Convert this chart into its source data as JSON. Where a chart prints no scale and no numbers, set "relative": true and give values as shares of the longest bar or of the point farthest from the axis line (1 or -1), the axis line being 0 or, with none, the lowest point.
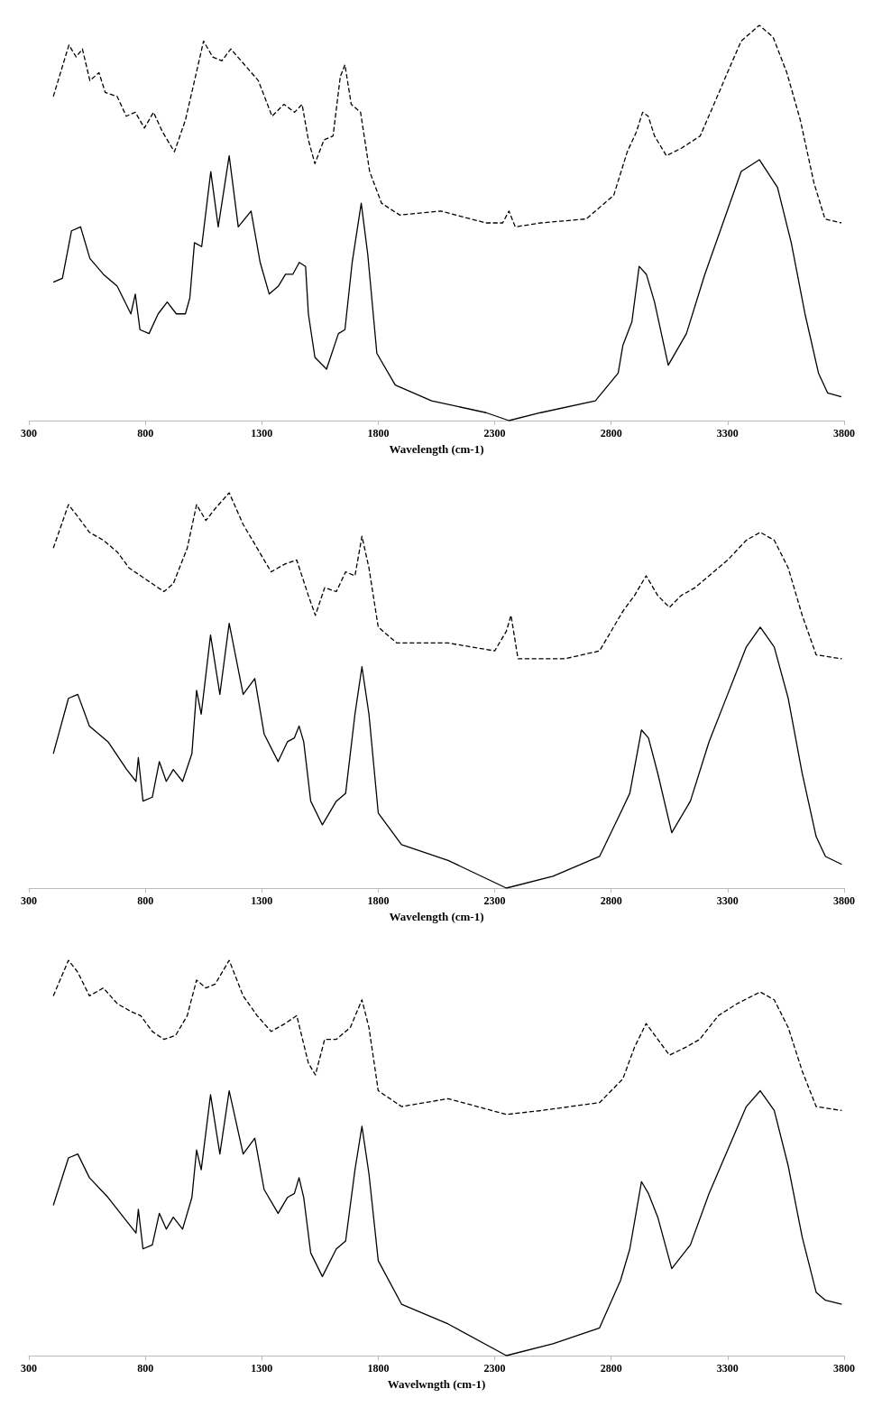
{
  "chart_data": [
    {
      "type": "line",
      "relative": true,
      "xlabel": "Wavelength (cm-1)",
      "xlim": [
        300,
        3800
      ],
      "xticks": [
        300,
        800,
        1300,
        1800,
        2300,
        2800,
        3300,
        3800
      ],
      "tick_labels": "x",
      "series": [
        {
          "color": "#000000",
          "line_style": "dashed",
          "x": [
            405,
            472,
            503,
            530,
            562,
            601,
            628,
            679,
            718,
            757,
            796,
            835,
            874,
            925,
            972,
            1019,
            1050,
            1089,
            1128,
            1167,
            1226,
            1285,
            1344,
            1395,
            1441,
            1473,
            1500,
            1528,
            1567,
            1606,
            1637,
            1657,
            1684,
            1724,
            1763,
            1814,
            1892,
            2068,
            2263,
            2334,
            2361,
            2388,
            2497,
            2693,
            2811,
            2869,
            2908,
            2935,
            2959,
            2986,
            3037,
            3104,
            3182,
            3241,
            3299,
            3358,
            3436,
            3495,
            3554,
            3612,
            3671,
            3718,
            3788
          ],
          "values": [
            0.82,
            0.95,
            0.92,
            0.94,
            0.86,
            0.88,
            0.83,
            0.82,
            0.77,
            0.78,
            0.74,
            0.78,
            0.73,
            0.68,
            0.76,
            0.88,
            0.96,
            0.92,
            0.91,
            0.94,
            0.9,
            0.86,
            0.77,
            0.8,
            0.78,
            0.8,
            0.71,
            0.65,
            0.71,
            0.72,
            0.87,
            0.9,
            0.8,
            0.78,
            0.63,
            0.55,
            0.52,
            0.53,
            0.5,
            0.5,
            0.53,
            0.49,
            0.5,
            0.51,
            0.57,
            0.68,
            0.73,
            0.78,
            0.77,
            0.72,
            0.67,
            0.69,
            0.72,
            0.8,
            0.88,
            0.96,
            1,
            0.97,
            0.88,
            0.76,
            0.6,
            0.51,
            0.5
          ]
        },
        {
          "color": "#000000",
          "line_style": "solid",
          "x": [
            405,
            444,
            483,
            522,
            562,
            620,
            679,
            738,
            757,
            777,
            816,
            855,
            894,
            933,
            972,
            991,
            1011,
            1042,
            1081,
            1113,
            1160,
            1199,
            1254,
            1293,
            1332,
            1371,
            1402,
            1433,
            1461,
            1488,
            1500,
            1528,
            1578,
            1629,
            1657,
            1688,
            1727,
            1755,
            1794,
            1873,
            2029,
            2263,
            2361,
            2497,
            2732,
            2830,
            2850,
            2889,
            2920,
            2951,
            2986,
            3045,
            3123,
            3202,
            3280,
            3358,
            3436,
            3514,
            3573,
            3632,
            3690,
            3729,
            3788
          ],
          "values": [
            0.35,
            0.36,
            0.48,
            0.49,
            0.41,
            0.37,
            0.34,
            0.27,
            0.32,
            0.23,
            0.22,
            0.27,
            0.3,
            0.27,
            0.27,
            0.31,
            0.45,
            0.44,
            0.63,
            0.49,
            0.67,
            0.49,
            0.53,
            0.4,
            0.32,
            0.34,
            0.37,
            0.37,
            0.4,
            0.39,
            0.27,
            0.16,
            0.13,
            0.22,
            0.23,
            0.4,
            0.55,
            0.42,
            0.17,
            0.09,
            0.05,
            0.02,
            0,
            0.02,
            0.05,
            0.12,
            0.19,
            0.25,
            0.39,
            0.37,
            0.3,
            0.14,
            0.22,
            0.37,
            0.5,
            0.63,
            0.66,
            0.59,
            0.45,
            0.27,
            0.12,
            0.07,
            0.06
          ]
        }
      ]
    },
    {
      "type": "line",
      "relative": true,
      "xlabel": "Wavelength (cm-1)",
      "xlim": [
        300,
        3800
      ],
      "xticks": [
        300,
        800,
        1300,
        1800,
        2300,
        2800,
        3300,
        3800
      ],
      "tick_labels": "x",
      "series": [
        {
          "color": "#000000",
          "line_style": "dashed",
          "x": [
            405,
            470,
            510,
            560,
            620,
            680,
            730,
            780,
            830,
            880,
            920,
            980,
            1020,
            1060,
            1100,
            1160,
            1220,
            1280,
            1340,
            1400,
            1450,
            1500,
            1530,
            1570,
            1620,
            1660,
            1700,
            1730,
            1760,
            1800,
            1880,
            2100,
            2300,
            2350,
            2370,
            2400,
            2600,
            2750,
            2850,
            2900,
            2950,
            3000,
            3050,
            3100,
            3160,
            3220,
            3300,
            3380,
            3440,
            3500,
            3560,
            3620,
            3680,
            3790
          ],
          "values": [
            0.86,
            0.97,
            0.94,
            0.9,
            0.88,
            0.85,
            0.81,
            0.79,
            0.77,
            0.75,
            0.77,
            0.86,
            0.97,
            0.93,
            0.96,
            1,
            0.92,
            0.86,
            0.8,
            0.82,
            0.83,
            0.74,
            0.69,
            0.76,
            0.75,
            0.8,
            0.79,
            0.89,
            0.81,
            0.66,
            0.62,
            0.62,
            0.6,
            0.65,
            0.69,
            0.58,
            0.58,
            0.6,
            0.7,
            0.74,
            0.79,
            0.74,
            0.71,
            0.74,
            0.76,
            0.79,
            0.83,
            0.88,
            0.9,
            0.88,
            0.81,
            0.69,
            0.59,
            0.58
          ]
        },
        {
          "color": "#000000",
          "line_style": "solid",
          "x": [
            405,
            470,
            510,
            560,
            640,
            720,
            760,
            770,
            790,
            830,
            860,
            890,
            920,
            960,
            1000,
            1020,
            1040,
            1080,
            1120,
            1160,
            1220,
            1270,
            1310,
            1370,
            1410,
            1440,
            1460,
            1480,
            1510,
            1560,
            1620,
            1660,
            1700,
            1730,
            1760,
            1800,
            1900,
            2100,
            2350,
            2550,
            2750,
            2840,
            2880,
            2930,
            2960,
            3000,
            3060,
            3140,
            3220,
            3300,
            3380,
            3440,
            3500,
            3560,
            3620,
            3680,
            3720,
            3790
          ],
          "values": [
            0.34,
            0.48,
            0.49,
            0.41,
            0.37,
            0.3,
            0.27,
            0.33,
            0.22,
            0.23,
            0.32,
            0.27,
            0.3,
            0.27,
            0.34,
            0.5,
            0.44,
            0.64,
            0.49,
            0.67,
            0.49,
            0.53,
            0.39,
            0.32,
            0.37,
            0.38,
            0.41,
            0.37,
            0.22,
            0.16,
            0.22,
            0.24,
            0.44,
            0.56,
            0.44,
            0.19,
            0.11,
            0.07,
            0,
            0.03,
            0.08,
            0.19,
            0.24,
            0.4,
            0.38,
            0.29,
            0.14,
            0.22,
            0.37,
            0.49,
            0.61,
            0.66,
            0.61,
            0.48,
            0.29,
            0.13,
            0.08,
            0.06
          ]
        }
      ]
    },
    {
      "type": "line",
      "relative": true,
      "xlabel": "Wavelwngth (cm-1)",
      "xlim": [
        300,
        3800
      ],
      "xticks": [
        300,
        800,
        1300,
        1800,
        2300,
        2800,
        3300,
        3800
      ],
      "tick_labels": "x",
      "series": [
        {
          "color": "#000000",
          "line_style": "dashed",
          "x": [
            405,
            470,
            510,
            560,
            620,
            680,
            740,
            780,
            830,
            880,
            930,
            980,
            1020,
            1060,
            1100,
            1160,
            1220,
            1280,
            1340,
            1400,
            1450,
            1500,
            1530,
            1570,
            1620,
            1680,
            1730,
            1760,
            1800,
            1900,
            2100,
            2350,
            2500,
            2750,
            2850,
            2900,
            2950,
            3000,
            3050,
            3120,
            3180,
            3260,
            3340,
            3440,
            3500,
            3560,
            3620,
            3680,
            3790
          ],
          "values": [
            0.91,
            1,
            0.97,
            0.91,
            0.93,
            0.89,
            0.87,
            0.86,
            0.82,
            0.8,
            0.81,
            0.86,
            0.95,
            0.93,
            0.94,
            1,
            0.91,
            0.86,
            0.82,
            0.84,
            0.86,
            0.74,
            0.71,
            0.8,
            0.8,
            0.83,
            0.9,
            0.83,
            0.67,
            0.63,
            0.65,
            0.61,
            0.62,
            0.64,
            0.7,
            0.78,
            0.84,
            0.8,
            0.76,
            0.78,
            0.8,
            0.86,
            0.89,
            0.92,
            0.9,
            0.83,
            0.72,
            0.63,
            0.62
          ]
        },
        {
          "color": "#000000",
          "line_style": "solid",
          "x": [
            405,
            470,
            510,
            560,
            640,
            720,
            760,
            770,
            790,
            830,
            860,
            890,
            920,
            960,
            1000,
            1020,
            1040,
            1080,
            1120,
            1160,
            1220,
            1270,
            1310,
            1370,
            1410,
            1440,
            1460,
            1480,
            1510,
            1560,
            1620,
            1660,
            1700,
            1730,
            1760,
            1800,
            1900,
            2100,
            2350,
            2550,
            2750,
            2840,
            2880,
            2930,
            2960,
            3000,
            3060,
            3140,
            3220,
            3300,
            3380,
            3440,
            3500,
            3560,
            3620,
            3680,
            3720,
            3790
          ],
          "values": [
            0.38,
            0.5,
            0.51,
            0.45,
            0.4,
            0.34,
            0.31,
            0.37,
            0.27,
            0.28,
            0.36,
            0.32,
            0.35,
            0.32,
            0.4,
            0.52,
            0.47,
            0.66,
            0.51,
            0.67,
            0.51,
            0.55,
            0.42,
            0.36,
            0.4,
            0.41,
            0.45,
            0.4,
            0.26,
            0.2,
            0.27,
            0.29,
            0.47,
            0.58,
            0.46,
            0.24,
            0.13,
            0.08,
            0,
            0.03,
            0.07,
            0.19,
            0.27,
            0.44,
            0.41,
            0.35,
            0.22,
            0.28,
            0.41,
            0.52,
            0.63,
            0.67,
            0.62,
            0.48,
            0.3,
            0.16,
            0.14,
            0.13
          ]
        }
      ]
    }
  ]
}
